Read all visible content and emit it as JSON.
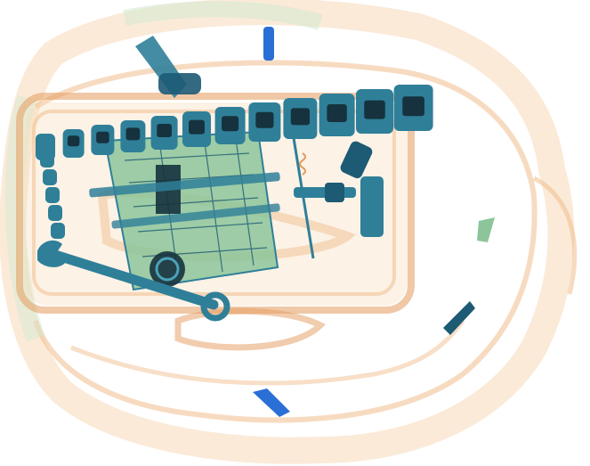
{
  "scan": {
    "palette": {
      "background": "#ffffff",
      "organic_light": "#f7d9b8",
      "organic": "#f0b884",
      "organic_dark": "#e39a5c",
      "mixed_light": "#d6ead2",
      "mixed": "#8cc59a",
      "metal_light": "#4aa2b8",
      "metal": "#2f7f99",
      "metal_dark": "#1d5a74",
      "dense": "#16323e",
      "blue_item": "#2a6fd6"
    },
    "objects": [
      {
        "name": "backpack-outline",
        "material": "organic"
      },
      {
        "name": "tool-case",
        "material": "organic"
      },
      {
        "name": "socket-row",
        "material": "metal"
      },
      {
        "name": "circuit-board",
        "material": "mixed"
      },
      {
        "name": "wrench",
        "material": "metal"
      },
      {
        "name": "ratchet-handle",
        "material": "metal"
      },
      {
        "name": "zipper-pull",
        "material": "metal"
      }
    ]
  }
}
